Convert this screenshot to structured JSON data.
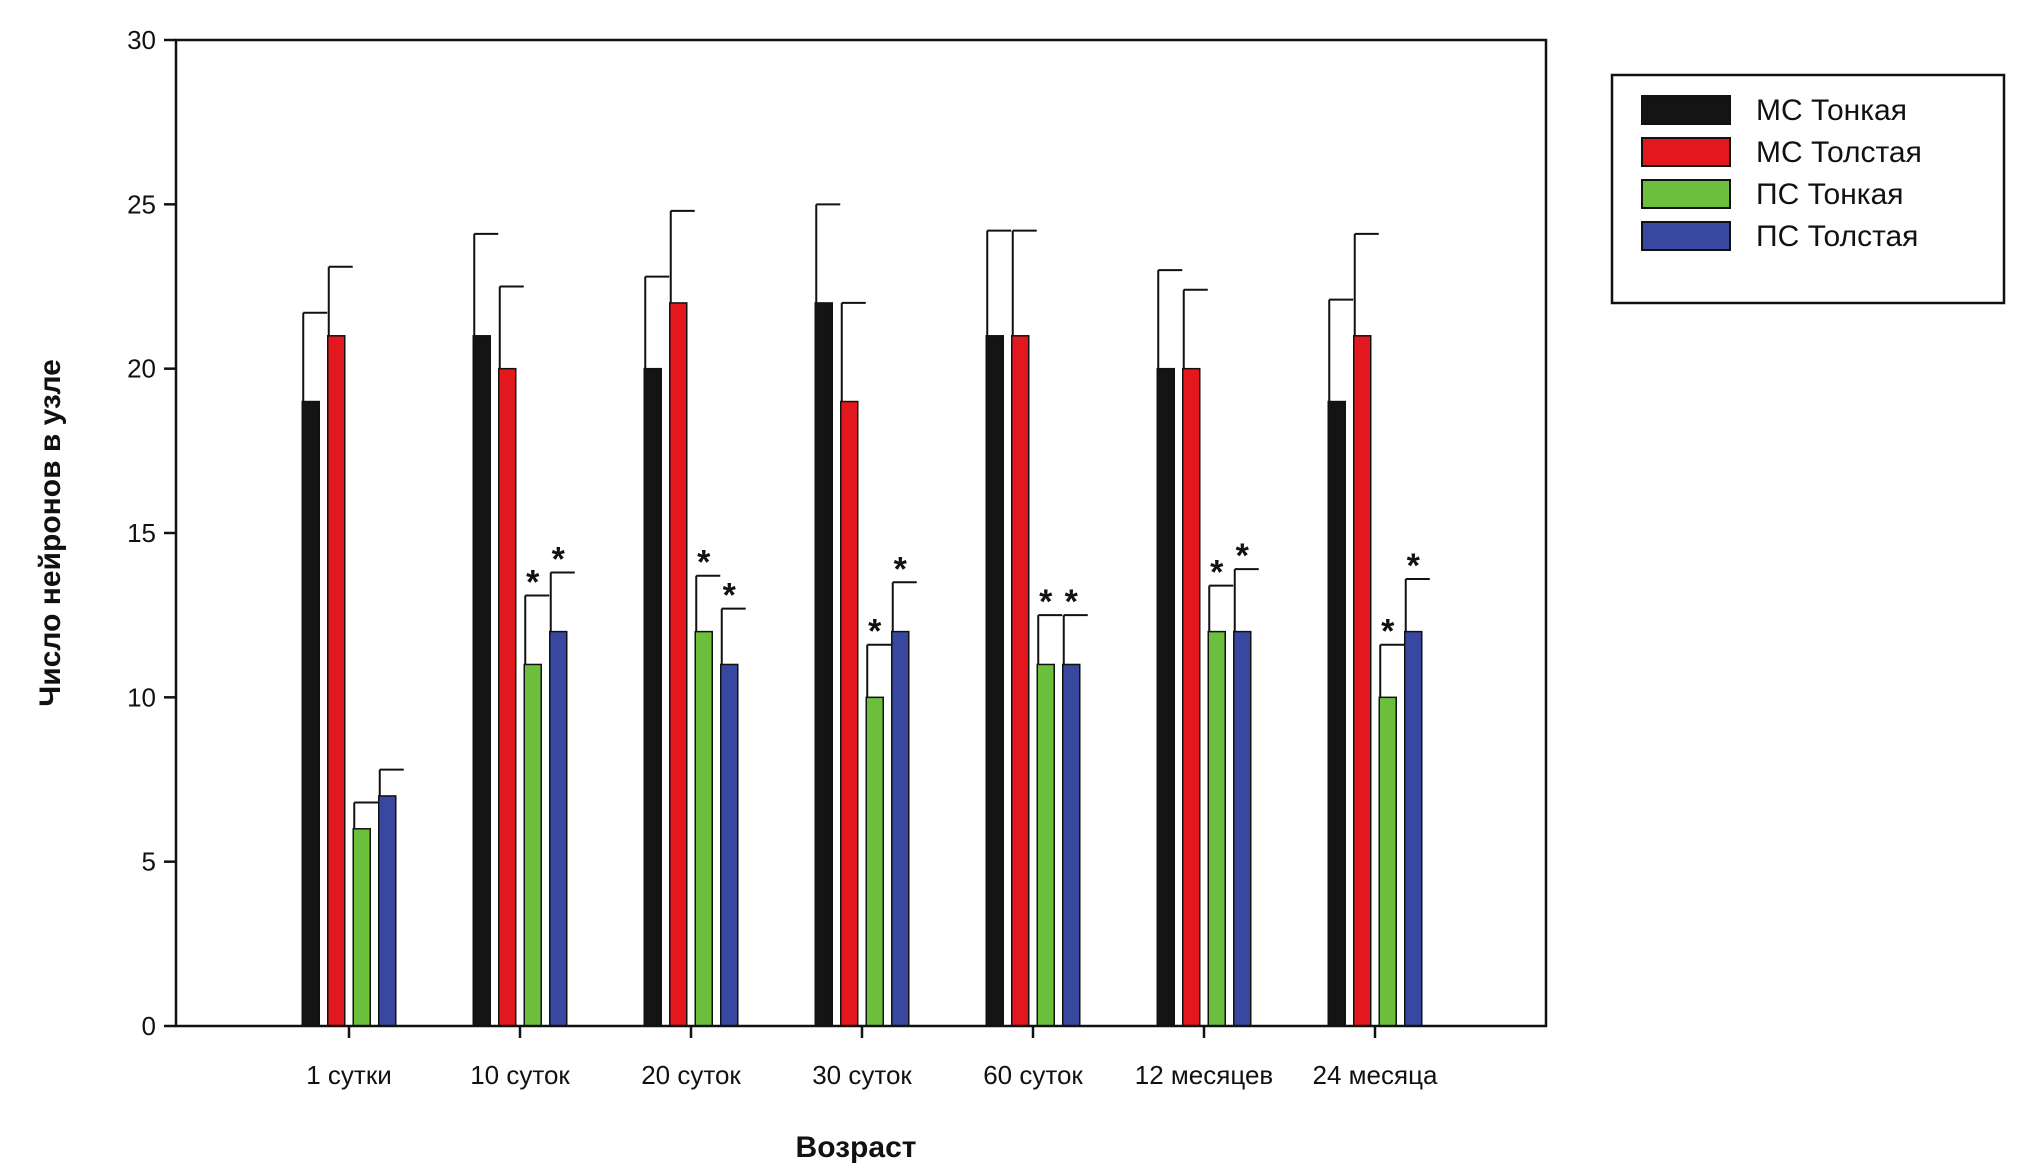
{
  "chart_data": {
    "type": "bar",
    "xlabel": "Возраст",
    "ylabel": "Число нейронов в узле",
    "ylim": [
      0,
      30
    ],
    "yticks": [
      0,
      5,
      10,
      15,
      20,
      25,
      30
    ],
    "grid": false,
    "legend_position": "right-top",
    "categories": [
      "1 сутки",
      "10 суток",
      "20 суток",
      "30 суток",
      "60 суток",
      "12 месяцев",
      "24 месяца"
    ],
    "series": [
      {
        "name": "МС Тонкая",
        "color": "#141414",
        "values": [
          19,
          21,
          20,
          22,
          21,
          20,
          19
        ],
        "errors": [
          2.7,
          3.1,
          2.8,
          3.0,
          3.2,
          3.0,
          3.1
        ],
        "significant": [
          false,
          false,
          false,
          false,
          false,
          false,
          false
        ]
      },
      {
        "name": "МС Толстая",
        "color": "#e3171e",
        "values": [
          21,
          20,
          22,
          19,
          21,
          20,
          21
        ],
        "errors": [
          2.1,
          2.5,
          2.8,
          3.0,
          3.2,
          2.4,
          3.1
        ],
        "significant": [
          false,
          false,
          false,
          false,
          false,
          false,
          false
        ]
      },
      {
        "name": "ПС Тонкая",
        "color": "#6cbf3c",
        "values": [
          6,
          11,
          12,
          10,
          11,
          12,
          10
        ],
        "errors": [
          0.8,
          2.1,
          1.7,
          1.6,
          1.5,
          1.4,
          1.6
        ],
        "significant": [
          false,
          true,
          true,
          true,
          true,
          true,
          true
        ]
      },
      {
        "name": "ПС Толстая",
        "color": "#3848a0",
        "values": [
          7,
          12,
          11,
          12,
          11,
          12,
          12
        ],
        "errors": [
          0.8,
          1.8,
          1.7,
          1.5,
          1.5,
          1.9,
          1.6
        ],
        "significant": [
          false,
          true,
          true,
          true,
          true,
          true,
          true
        ]
      }
    ],
    "significance_marker": "*"
  }
}
